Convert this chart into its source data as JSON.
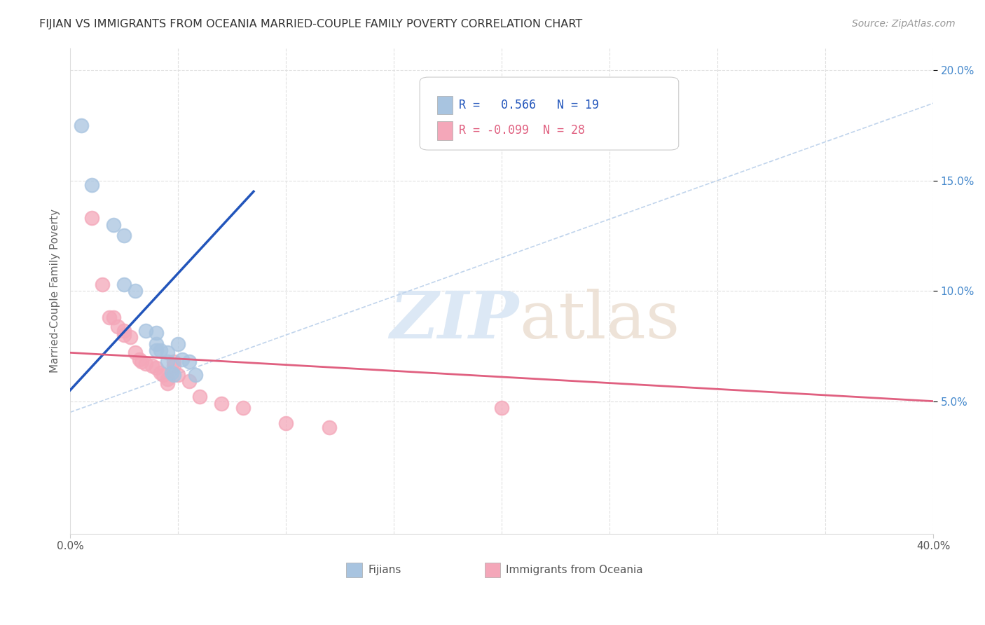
{
  "title": "FIJIAN VS IMMIGRANTS FROM OCEANIA MARRIED-COUPLE FAMILY POVERTY CORRELATION CHART",
  "source": "Source: ZipAtlas.com",
  "ylabel": "Married-Couple Family Poverty",
  "xlim": [
    0.0,
    0.4
  ],
  "ylim": [
    -0.01,
    0.21
  ],
  "fijian_color": "#a8c4e0",
  "oceania_color": "#f4a7b9",
  "fijian_R": 0.566,
  "fijian_N": 19,
  "oceania_R": -0.099,
  "oceania_N": 28,
  "fijian_line_color": "#2255bb",
  "oceania_line_color": "#e06080",
  "diagonal_color": "#c0d4ec",
  "background_color": "#ffffff",
  "grid_color": "#e0e0e0",
  "watermark_color": "#dce8f5",
  "fijian_points": [
    [
      0.005,
      0.175
    ],
    [
      0.01,
      0.148
    ],
    [
      0.02,
      0.13
    ],
    [
      0.025,
      0.125
    ],
    [
      0.025,
      0.103
    ],
    [
      0.03,
      0.1
    ],
    [
      0.035,
      0.082
    ],
    [
      0.04,
      0.081
    ],
    [
      0.04,
      0.076
    ],
    [
      0.04,
      0.073
    ],
    [
      0.042,
      0.073
    ],
    [
      0.045,
      0.072
    ],
    [
      0.045,
      0.068
    ],
    [
      0.047,
      0.063
    ],
    [
      0.048,
      0.062
    ],
    [
      0.05,
      0.076
    ],
    [
      0.052,
      0.069
    ],
    [
      0.055,
      0.068
    ],
    [
      0.058,
      0.062
    ]
  ],
  "oceania_points": [
    [
      0.01,
      0.133
    ],
    [
      0.015,
      0.103
    ],
    [
      0.018,
      0.088
    ],
    [
      0.02,
      0.088
    ],
    [
      0.022,
      0.084
    ],
    [
      0.025,
      0.082
    ],
    [
      0.025,
      0.08
    ],
    [
      0.028,
      0.079
    ],
    [
      0.03,
      0.072
    ],
    [
      0.032,
      0.069
    ],
    [
      0.033,
      0.068
    ],
    [
      0.035,
      0.067
    ],
    [
      0.038,
      0.066
    ],
    [
      0.04,
      0.065
    ],
    [
      0.042,
      0.063
    ],
    [
      0.043,
      0.062
    ],
    [
      0.045,
      0.06
    ],
    [
      0.045,
      0.058
    ],
    [
      0.048,
      0.068
    ],
    [
      0.048,
      0.066
    ],
    [
      0.05,
      0.062
    ],
    [
      0.055,
      0.059
    ],
    [
      0.06,
      0.052
    ],
    [
      0.07,
      0.049
    ],
    [
      0.08,
      0.047
    ],
    [
      0.1,
      0.04
    ],
    [
      0.12,
      0.038
    ],
    [
      0.2,
      0.047
    ]
  ],
  "fijian_line_x": [
    0.0,
    0.085
  ],
  "fijian_line_y": [
    0.055,
    0.145
  ],
  "oceania_line_x": [
    0.0,
    0.4
  ],
  "oceania_line_y": [
    0.072,
    0.05
  ]
}
